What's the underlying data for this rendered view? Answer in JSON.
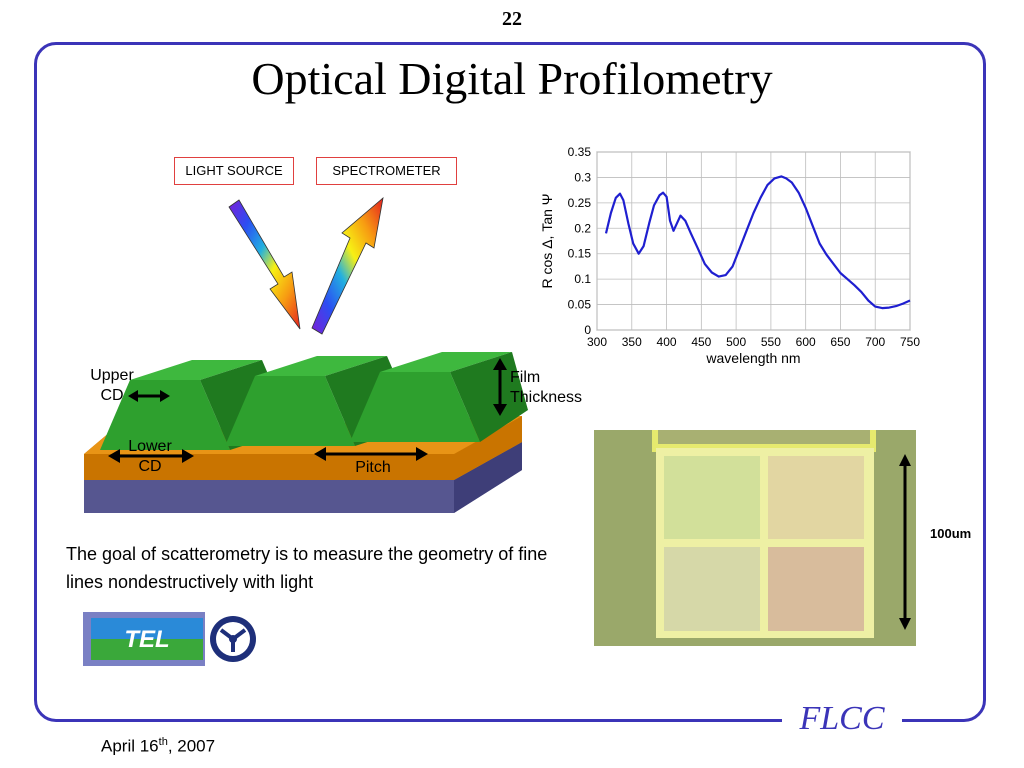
{
  "slide": {
    "page_number": "22",
    "title": "Optical Digital Profilometry",
    "caption": "The goal of scatterometry is to measure the geometry of fine lines nondestructively with light",
    "footer_brand": "FLCC",
    "date_prefix": "April 16",
    "date_sup": "th",
    "date_suffix": ", 2007"
  },
  "diagram": {
    "light_source_label": "LIGHT SOURCE",
    "spectrometer_label": "SPECTROMETER",
    "upper_cd_label": "Upper\nCD",
    "lower_cd_label": "Lower\nCD",
    "pitch_label": "Pitch",
    "film_thickness_label": "Film\nThickness",
    "colors": {
      "lines": "#2ea02e",
      "film": "#cf7a00",
      "substrate": "#565690"
    }
  },
  "micrograph": {
    "scale_label": "100um"
  },
  "logos": {
    "left_logo_text": "TEL"
  },
  "chart_data": {
    "type": "line",
    "xlabel": "wavelength  nm",
    "ylabel": "R  cos Δ, Tan Ψ",
    "xlim": [
      300,
      750
    ],
    "ylim": [
      0,
      0.35
    ],
    "x_ticks": [
      "300",
      "350",
      "400",
      "450",
      "500",
      "550",
      "600",
      "650",
      "700",
      "750"
    ],
    "y_ticks": [
      "0",
      "0.05",
      "0.1",
      "0.15",
      "0.2",
      "0.25",
      "0.3",
      "0.35"
    ],
    "grid": true,
    "series": [
      {
        "color": "#1f1fd0",
        "x": [
          313,
          320,
          327,
          333,
          338,
          345,
          352,
          360,
          367,
          375,
          382,
          390,
          395,
          400,
          405,
          410,
          415,
          420,
          427,
          435,
          445,
          455,
          465,
          475,
          485,
          495,
          505,
          515,
          525,
          535,
          545,
          555,
          565,
          572,
          580,
          590,
          600,
          610,
          620,
          630,
          640,
          650,
          660,
          670,
          680,
          690,
          700,
          710,
          720,
          730,
          740,
          750
        ],
        "y": [
          0.19,
          0.23,
          0.26,
          0.268,
          0.255,
          0.21,
          0.17,
          0.15,
          0.165,
          0.21,
          0.245,
          0.265,
          0.27,
          0.262,
          0.215,
          0.195,
          0.21,
          0.225,
          0.215,
          0.19,
          0.16,
          0.13,
          0.113,
          0.105,
          0.108,
          0.125,
          0.16,
          0.195,
          0.23,
          0.26,
          0.285,
          0.298,
          0.302,
          0.298,
          0.29,
          0.27,
          0.24,
          0.205,
          0.17,
          0.148,
          0.13,
          0.112,
          0.1,
          0.088,
          0.075,
          0.058,
          0.046,
          0.043,
          0.044,
          0.047,
          0.052,
          0.058
        ]
      }
    ]
  }
}
